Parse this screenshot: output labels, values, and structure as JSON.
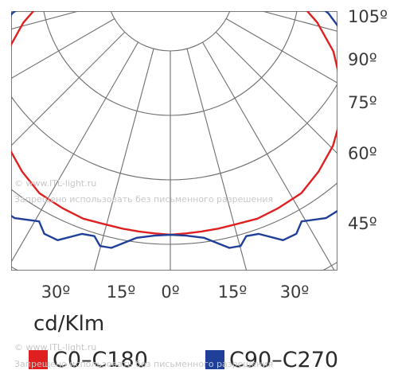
{
  "chart_data": {
    "type": "polar",
    "unit_label": "cd/Klm",
    "right_angle_labels": [
      "105º",
      "90º",
      "75º",
      "60º",
      "45º"
    ],
    "bottom_angle_labels": [
      "30º",
      "15º",
      "0º",
      "15º",
      "30º"
    ],
    "series": [
      {
        "name": "C0–C180",
        "color": "#e02020",
        "angles_deg": [
          0,
          10,
          20,
          30,
          40,
          50,
          60,
          70,
          80,
          90,
          100,
          110,
          120,
          130,
          140,
          150,
          160,
          170,
          180
        ],
        "intensity_cd_klm": [
          80,
          80,
          82,
          86,
          92,
          102,
          112,
          125,
          135,
          146,
          156,
          163,
          169,
          172,
          174,
          173,
          171,
          169,
          168
        ]
      },
      {
        "name": "C90–C270",
        "color": "#1f3f99",
        "angles_deg": [
          0,
          10,
          20,
          30,
          35,
          40,
          45,
          50,
          55,
          60,
          65,
          70,
          75,
          80,
          90,
          100,
          110,
          120,
          130,
          140,
          150,
          160,
          170,
          180
        ],
        "intensity_cd_klm": [
          80,
          82,
          88,
          106,
          110,
          106,
          112,
          132,
          138,
          136,
          154,
          164,
          168,
          170,
          175,
          178,
          183,
          186,
          185,
          180,
          174,
          170,
          168,
          168
        ]
      }
    ]
  },
  "watermark": {
    "site": "© www.ITL-light.ru",
    "notice": "Запрещено использовать без письменного разрешения"
  },
  "legend": {
    "items": [
      {
        "label": "C0–C180",
        "color": "#e02020"
      },
      {
        "label": "C90–C270",
        "color": "#1f3f99"
      }
    ]
  }
}
